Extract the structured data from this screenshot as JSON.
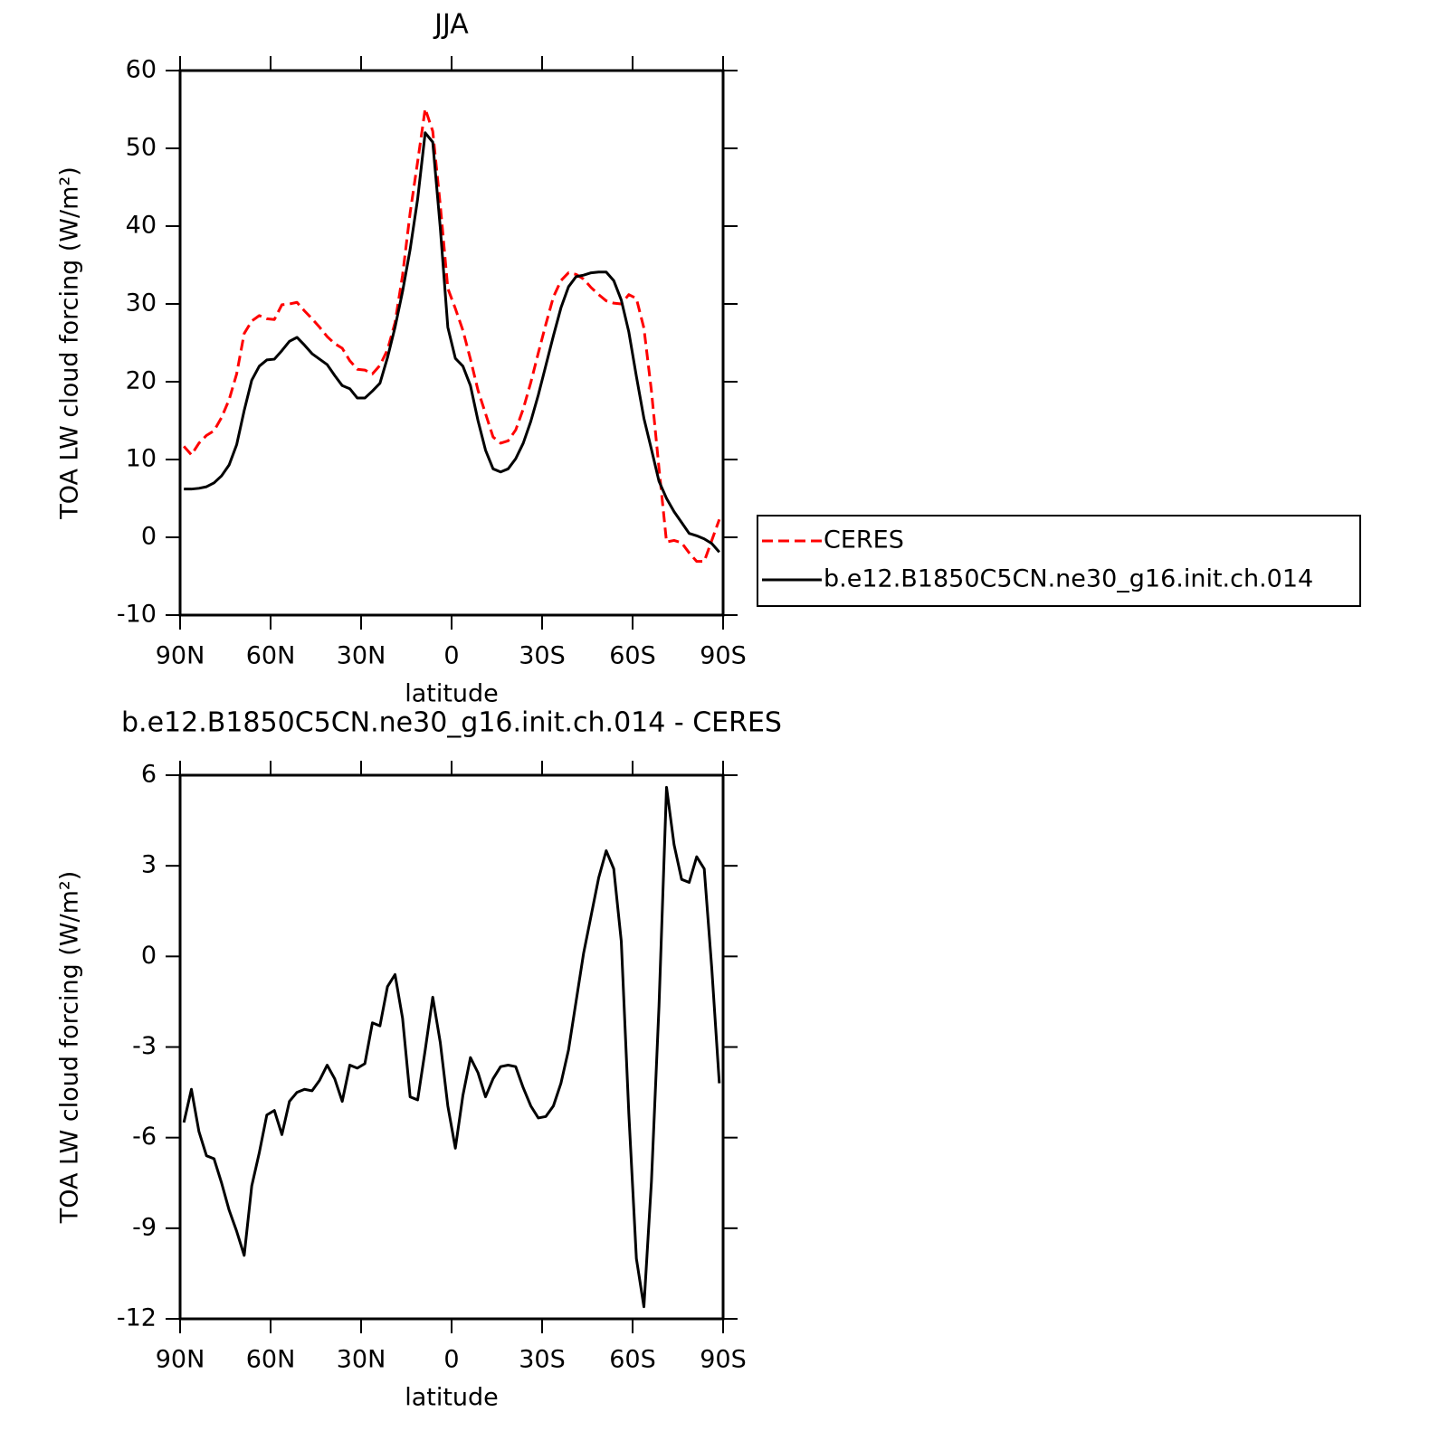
{
  "chart_data": [
    {
      "type": "line",
      "title": "JJA",
      "xlabel": "latitude",
      "ylabel": "TOA LW cloud forcing (W/m²)",
      "x": [
        88.75,
        86.25,
        83.75,
        81.25,
        78.75,
        76.25,
        73.75,
        71.25,
        68.75,
        66.25,
        63.75,
        61.25,
        58.75,
        56.25,
        53.75,
        51.25,
        48.75,
        46.25,
        43.75,
        41.25,
        38.75,
        36.25,
        33.75,
        31.25,
        28.75,
        26.25,
        23.75,
        21.25,
        18.75,
        16.25,
        13.75,
        11.25,
        8.75,
        6.25,
        3.75,
        1.25,
        -1.25,
        -3.75,
        -6.25,
        -8.75,
        -11.25,
        -13.75,
        -16.25,
        -18.75,
        -21.25,
        -23.75,
        -26.25,
        -28.75,
        -31.25,
        -33.75,
        -36.25,
        -38.75,
        -41.25,
        -43.75,
        -46.25,
        -48.75,
        -51.25,
        -53.75,
        -56.25,
        -58.75,
        -61.25,
        -63.75,
        -66.25,
        -68.75,
        -71.25,
        -73.75,
        -76.25,
        -78.75,
        -81.25,
        -83.75,
        -86.25,
        -88.75
      ],
      "xlim": [
        90,
        -90
      ],
      "xticks": [
        {
          "value": 90,
          "label": "90N"
        },
        {
          "value": 60,
          "label": "60N"
        },
        {
          "value": 30,
          "label": "30N"
        },
        0,
        {
          "value": -30,
          "label": "30S"
        },
        {
          "value": -60,
          "label": "60S"
        },
        {
          "value": -90,
          "label": "90S"
        }
      ],
      "ylim": [
        -10,
        60
      ],
      "yticks": [
        -10,
        0,
        10,
        20,
        30,
        40,
        50,
        60
      ],
      "legend": "right",
      "series": [
        {
          "name": "CERES",
          "color": "#ff0000",
          "dash": true,
          "values": [
            11.7,
            10.6,
            12.1,
            13.1,
            13.7,
            15.4,
            17.7,
            21.0,
            26.2,
            27.8,
            28.5,
            28.1,
            28.0,
            29.9,
            30.0,
            30.2,
            29.1,
            28.1,
            27.0,
            25.8,
            24.9,
            24.3,
            22.7,
            21.6,
            21.5,
            21.0,
            22.1,
            24.1,
            27.6,
            33.7,
            41.7,
            48.3,
            55.1,
            52.2,
            42.7,
            32.0,
            29.4,
            26.6,
            22.9,
            18.9,
            15.9,
            12.9,
            12.1,
            12.4,
            13.8,
            16.5,
            19.9,
            23.7,
            27.4,
            30.9,
            33.0,
            34.0,
            33.8,
            33.2,
            32.1,
            31.2,
            30.4,
            30.1,
            30.0,
            31.2,
            30.7,
            26.9,
            18.8,
            8.9,
            -0.6,
            -0.4,
            -0.7,
            -2.0,
            -3.1,
            -3.1,
            -0.4,
            2.3
          ]
        },
        {
          "name": "b.e12.B1850C5CN.ne30_g16.init.ch.014",
          "color": "#000000",
          "dash": false,
          "values": [
            6.2,
            6.2,
            6.3,
            6.5,
            7.0,
            7.9,
            9.3,
            11.9,
            16.3,
            20.2,
            22.0,
            22.8,
            22.9,
            24.0,
            25.2,
            25.7,
            24.7,
            23.6,
            22.9,
            22.2,
            20.8,
            19.5,
            19.1,
            17.9,
            17.9,
            18.8,
            19.8,
            23.1,
            27.0,
            31.6,
            37.0,
            43.5,
            52.0,
            50.8,
            39.8,
            27.0,
            23.0,
            22.0,
            19.5,
            15.0,
            11.2,
            8.8,
            8.4,
            8.8,
            10.1,
            12.1,
            14.9,
            18.3,
            22.1,
            25.9,
            29.5,
            32.2,
            33.5,
            33.7,
            34.0,
            34.1,
            34.1,
            33.0,
            30.5,
            26.4,
            20.7,
            15.3,
            11.3,
            7.2,
            5.0,
            3.3,
            1.9,
            0.5,
            0.2,
            -0.2,
            -0.8,
            -1.9
          ]
        }
      ]
    },
    {
      "type": "line",
      "title": "b.e12.B1850C5CN.ne30_g16.init.ch.014 - CERES",
      "xlabel": "latitude",
      "ylabel": "TOA LW cloud forcing (W/m²)",
      "x": [
        88.75,
        86.25,
        83.75,
        81.25,
        78.75,
        76.25,
        73.75,
        71.25,
        68.75,
        66.25,
        63.75,
        61.25,
        58.75,
        56.25,
        53.75,
        51.25,
        48.75,
        46.25,
        43.75,
        41.25,
        38.75,
        36.25,
        33.75,
        31.25,
        28.75,
        26.25,
        23.75,
        21.25,
        18.75,
        16.25,
        13.75,
        11.25,
        8.75,
        6.25,
        3.75,
        1.25,
        -1.25,
        -3.75,
        -6.25,
        -8.75,
        -11.25,
        -13.75,
        -16.25,
        -18.75,
        -21.25,
        -23.75,
        -26.25,
        -28.75,
        -31.25,
        -33.75,
        -36.25,
        -38.75,
        -41.25,
        -43.75,
        -46.25,
        -48.75,
        -51.25,
        -53.75,
        -56.25,
        -58.75,
        -61.25,
        -63.75,
        -66.25,
        -68.75,
        -71.25,
        -73.75,
        -76.25,
        -78.75,
        -81.25,
        -83.75,
        -86.25,
        -88.75
      ],
      "xlim": [
        90,
        -90
      ],
      "xticks": [
        {
          "value": 90,
          "label": "90N"
        },
        {
          "value": 60,
          "label": "60N"
        },
        {
          "value": 30,
          "label": "30N"
        },
        0,
        {
          "value": -30,
          "label": "30S"
        },
        {
          "value": -60,
          "label": "60S"
        },
        {
          "value": -90,
          "label": "90S"
        }
      ],
      "ylim": [
        -12,
        6
      ],
      "yticks": [
        -12,
        -9,
        -6,
        -3,
        0,
        3,
        6
      ],
      "series": [
        {
          "color": "#000000",
          "dash": false,
          "values": [
            -5.5,
            -4.4,
            -5.8,
            -6.6,
            -6.7,
            -7.5,
            -8.4,
            -9.1,
            -9.9,
            -7.6,
            -6.5,
            -5.25,
            -5.1,
            -5.9,
            -4.8,
            -4.5,
            -4.4,
            -4.45,
            -4.1,
            -3.6,
            -4.05,
            -4.8,
            -3.6,
            -3.7,
            -3.55,
            -2.2,
            -2.3,
            -1.0,
            -0.6,
            -2.05,
            -4.65,
            -4.75,
            -3.1,
            -1.35,
            -2.85,
            -4.95,
            -6.35,
            -4.6,
            -3.35,
            -3.85,
            -4.65,
            -4.05,
            -3.65,
            -3.6,
            -3.65,
            -4.35,
            -4.95,
            -5.35,
            -5.3,
            -4.95,
            -4.2,
            -3.1,
            -1.5,
            0.1,
            1.35,
            2.6,
            3.5,
            2.9,
            0.5,
            -5.2,
            -10.0,
            -11.6,
            -7.45,
            -1.65,
            5.6,
            3.7,
            2.55,
            2.45,
            3.3,
            2.9,
            -0.4,
            -4.2
          ]
        }
      ]
    }
  ]
}
